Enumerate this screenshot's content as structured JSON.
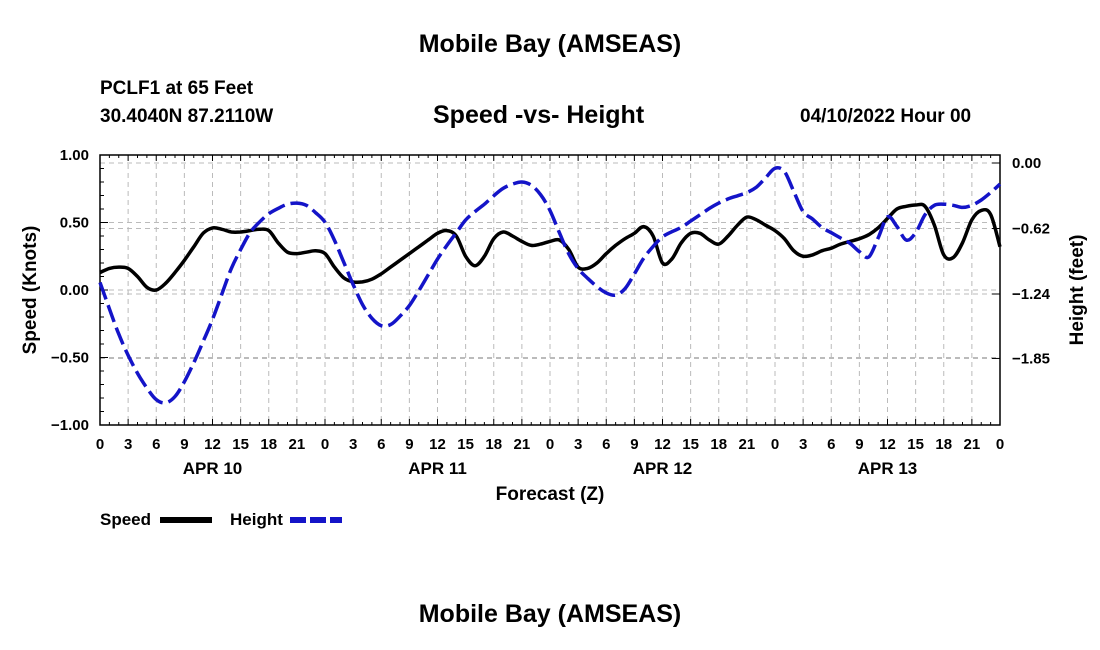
{
  "header": {
    "title": "Mobile Bay (AMSEAS)",
    "station": "PCLF1 at 65 Feet",
    "coords": "30.4040N  87.2110W",
    "subtitle": "Speed -vs- Height",
    "datetime": "04/10/2022 Hour 00"
  },
  "footer": {
    "title": "Mobile Bay (AMSEAS)"
  },
  "legend": {
    "speed": "Speed",
    "height": "Height"
  },
  "colors": {
    "speed": "#000000",
    "height": "#1414c8",
    "grid": "#bbbbbb"
  },
  "chart_data": {
    "type": "line",
    "title": "Speed -vs- Height",
    "xlabel": "Forecast (Z)",
    "ylabel": "Speed (Knots)",
    "y2label": "Height (feet)",
    "xlim": [
      0,
      96
    ],
    "ylim": [
      -1.0,
      1.0
    ],
    "y2lim": [
      -2.48,
      0.0
    ],
    "x_ticks": [
      0,
      3,
      6,
      9,
      12,
      15,
      18,
      21,
      24,
      27,
      30,
      33,
      36,
      39,
      42,
      45,
      48,
      51,
      54,
      57,
      60,
      63,
      66,
      69,
      72,
      75,
      78,
      81,
      84,
      87,
      90,
      93,
      96
    ],
    "x_tick_labels": [
      "0",
      "3",
      "6",
      "9",
      "12",
      "15",
      "18",
      "21",
      "0",
      "3",
      "6",
      "9",
      "12",
      "15",
      "18",
      "21",
      "0",
      "3",
      "6",
      "9",
      "12",
      "15",
      "18",
      "21",
      "0",
      "3",
      "6",
      "9",
      "12",
      "15",
      "18",
      "21",
      "0"
    ],
    "day_labels": [
      {
        "hour": 12,
        "label": "APR 10"
      },
      {
        "hour": 36,
        "label": "APR 11"
      },
      {
        "hour": 60,
        "label": "APR 12"
      },
      {
        "hour": 84,
        "label": "APR 13"
      }
    ],
    "y_ticks": [
      1.0,
      0.5,
      0.0,
      -0.5,
      -1.0
    ],
    "y_tick_labels": [
      "1.00",
      "0.50",
      "0.00",
      "−0.50",
      "−1.00"
    ],
    "y2_ticks": [
      0.0,
      -0.62,
      -1.24,
      -1.85
    ],
    "y2_tick_labels": [
      "0.00",
      "−0.62",
      "−1.24",
      "−1.85"
    ],
    "grid": true,
    "series": [
      {
        "name": "Speed",
        "axis": "left",
        "style": "solid",
        "x": [
          0,
          1,
          2,
          3,
          4,
          5,
          6,
          7,
          8,
          9,
          10,
          11,
          12,
          13,
          14,
          15,
          16,
          17,
          18,
          19,
          20,
          21,
          22,
          23,
          24,
          25,
          26,
          27,
          28,
          29,
          30,
          31,
          32,
          33,
          34,
          35,
          36,
          37,
          38,
          39,
          40,
          41,
          42,
          43,
          44,
          45,
          46,
          47,
          48,
          49,
          50,
          51,
          52,
          53,
          54,
          55,
          56,
          57,
          58,
          59,
          60,
          61,
          62,
          63,
          64,
          65,
          66,
          67,
          68,
          69,
          70,
          71,
          72,
          73,
          74,
          75,
          76,
          77,
          78,
          79,
          80,
          81,
          82,
          83,
          84,
          85,
          86,
          87,
          88,
          89,
          90,
          91,
          92,
          93,
          94,
          95,
          96
        ],
        "values": [
          0.13,
          0.16,
          0.17,
          0.16,
          0.1,
          0.02,
          0.0,
          0.05,
          0.13,
          0.22,
          0.32,
          0.42,
          0.46,
          0.45,
          0.43,
          0.43,
          0.44,
          0.45,
          0.44,
          0.35,
          0.28,
          0.27,
          0.28,
          0.29,
          0.27,
          0.17,
          0.09,
          0.06,
          0.06,
          0.08,
          0.12,
          0.17,
          0.22,
          0.27,
          0.32,
          0.37,
          0.42,
          0.44,
          0.4,
          0.25,
          0.18,
          0.25,
          0.38,
          0.43,
          0.4,
          0.36,
          0.33,
          0.34,
          0.36,
          0.37,
          0.3,
          0.17,
          0.16,
          0.2,
          0.27,
          0.33,
          0.38,
          0.42,
          0.47,
          0.4,
          0.2,
          0.23,
          0.35,
          0.42,
          0.42,
          0.37,
          0.34,
          0.4,
          0.48,
          0.54,
          0.52,
          0.48,
          0.44,
          0.38,
          0.29,
          0.25,
          0.26,
          0.29,
          0.31,
          0.34,
          0.36,
          0.38,
          0.41,
          0.46,
          0.53,
          0.6,
          0.62,
          0.63,
          0.62,
          0.48,
          0.26,
          0.24,
          0.35,
          0.52,
          0.59,
          0.56,
          0.32
        ]
      },
      {
        "name": "Height",
        "axis": "right",
        "style": "dashed",
        "x": [
          0,
          1,
          2,
          3,
          4,
          5,
          6,
          7,
          8,
          9,
          10,
          11,
          12,
          13,
          14,
          15,
          16,
          17,
          18,
          19,
          20,
          21,
          22,
          23,
          24,
          25,
          26,
          27,
          28,
          29,
          30,
          31,
          32,
          33,
          34,
          35,
          36,
          37,
          38,
          39,
          40,
          41,
          42,
          43,
          44,
          45,
          46,
          47,
          48,
          49,
          50,
          51,
          52,
          53,
          54,
          55,
          56,
          57,
          58,
          59,
          60,
          61,
          62,
          63,
          64,
          65,
          66,
          67,
          68,
          69,
          70,
          71,
          72,
          73,
          74,
          75,
          76,
          77,
          78,
          79,
          80,
          81,
          82,
          83,
          84,
          85,
          86,
          87,
          88,
          89,
          90,
          91,
          92,
          93,
          94,
          95,
          96
        ],
        "values": [
          -1.13,
          -1.38,
          -1.62,
          -1.82,
          -1.99,
          -2.13,
          -2.24,
          -2.27,
          -2.21,
          -2.07,
          -1.89,
          -1.69,
          -1.48,
          -1.24,
          -1.0,
          -0.82,
          -0.66,
          -0.56,
          -0.48,
          -0.43,
          -0.39,
          -0.38,
          -0.4,
          -0.47,
          -0.56,
          -0.73,
          -0.94,
          -1.15,
          -1.34,
          -1.47,
          -1.54,
          -1.53,
          -1.45,
          -1.35,
          -1.21,
          -1.06,
          -0.91,
          -0.78,
          -0.66,
          -0.54,
          -0.46,
          -0.39,
          -0.31,
          -0.24,
          -0.2,
          -0.18,
          -0.21,
          -0.3,
          -0.45,
          -0.66,
          -0.86,
          -1.0,
          -1.09,
          -1.17,
          -1.23,
          -1.25,
          -1.19,
          -1.05,
          -0.9,
          -0.79,
          -0.7,
          -0.65,
          -0.61,
          -0.55,
          -0.49,
          -0.43,
          -0.38,
          -0.34,
          -0.31,
          -0.28,
          -0.23,
          -0.14,
          -0.05,
          -0.08,
          -0.27,
          -0.46,
          -0.53,
          -0.61,
          -0.66,
          -0.71,
          -0.76,
          -0.84,
          -0.89,
          -0.71,
          -0.51,
          -0.6,
          -0.73,
          -0.66,
          -0.49,
          -0.4,
          -0.39,
          -0.4,
          -0.42,
          -0.4,
          -0.35,
          -0.28,
          -0.2
        ]
      }
    ]
  }
}
